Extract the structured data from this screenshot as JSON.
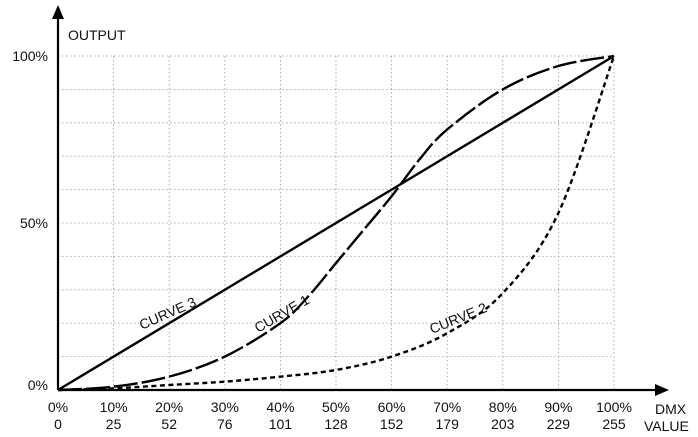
{
  "chart_data": {
    "type": "line",
    "title": "",
    "ylabel": "OUTPUT",
    "xlabel_lines": [
      "DMX",
      "VALUE"
    ],
    "xlim": [
      0,
      100
    ],
    "ylim": [
      0,
      100
    ],
    "grid": true,
    "x_ticks": [
      {
        "x": 0,
        "percent": "0%",
        "dmx": "0"
      },
      {
        "x": 10,
        "percent": "10%",
        "dmx": "25"
      },
      {
        "x": 20,
        "percent": "20%",
        "dmx": "52"
      },
      {
        "x": 30,
        "percent": "30%",
        "dmx": "76"
      },
      {
        "x": 40,
        "percent": "40%",
        "dmx": "101"
      },
      {
        "x": 50,
        "percent": "50%",
        "dmx": "128"
      },
      {
        "x": 60,
        "percent": "60%",
        "dmx": "152"
      },
      {
        "x": 70,
        "percent": "70%",
        "dmx": "179"
      },
      {
        "x": 80,
        "percent": "80%",
        "dmx": "203"
      },
      {
        "x": 90,
        "percent": "90%",
        "dmx": "229"
      },
      {
        "x": 100,
        "percent": "100%",
        "dmx": "255"
      }
    ],
    "y_ticks": [
      {
        "y": 0,
        "label": "0%"
      },
      {
        "y": 50,
        "label": "50%"
      },
      {
        "y": 100,
        "label": "100%"
      }
    ],
    "series": [
      {
        "name": "CURVE 1",
        "style": "long-dash",
        "x": [
          0,
          10,
          20,
          30,
          40,
          45,
          50,
          55,
          60,
          65,
          70,
          80,
          90,
          100
        ],
        "y": [
          0,
          1,
          4,
          10,
          20,
          28,
          38,
          48,
          58,
          69,
          78,
          90,
          97,
          100
        ]
      },
      {
        "name": "CURVE 2",
        "style": "short-dash",
        "x": [
          0,
          10,
          20,
          30,
          40,
          50,
          60,
          70,
          80,
          90,
          100
        ],
        "y": [
          0,
          0.5,
          1.5,
          2.5,
          4,
          6,
          10,
          17,
          29,
          53,
          100
        ]
      },
      {
        "name": "CURVE 3",
        "style": "solid",
        "x": [
          0,
          100
        ],
        "y": [
          0,
          100
        ]
      }
    ]
  }
}
